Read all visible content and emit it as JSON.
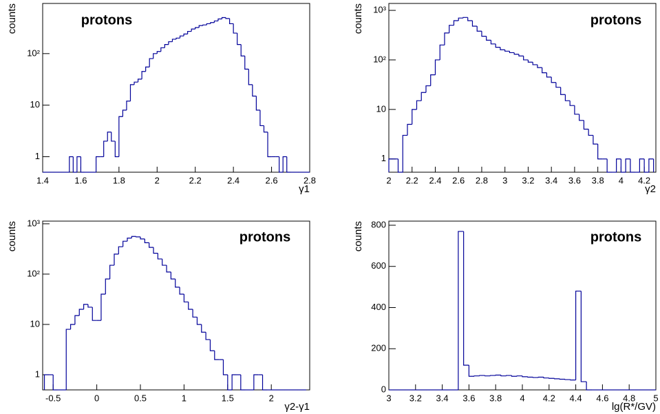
{
  "chart_data": [
    {
      "type": "histogram",
      "title": "protons",
      "x_label": "γ1",
      "y_label": "counts",
      "color": "#000099",
      "log_y": true,
      "xlim": [
        1.4,
        2.8
      ],
      "ylim": [
        0.5,
        940
      ],
      "xticks": [
        1.4,
        1.6,
        1.8,
        2,
        2.2,
        2.4,
        2.6,
        2.8
      ],
      "yticks": [
        1,
        10,
        {
          "value": 100,
          "label": "10²"
        }
      ],
      "bins": [
        1.4,
        1.42,
        1.44,
        1.46,
        1.48,
        1.5,
        1.52,
        1.54,
        1.56,
        1.58,
        1.6,
        1.62,
        1.64,
        1.66,
        1.68,
        1.7,
        1.72,
        1.74,
        1.76,
        1.78,
        1.8,
        1.82,
        1.84,
        1.86,
        1.88,
        1.9,
        1.92,
        1.94,
        1.96,
        1.98,
        2,
        2.02,
        2.04,
        2.06,
        2.08,
        2.1,
        2.12,
        2.14,
        2.16,
        2.18,
        2.2,
        2.22,
        2.24,
        2.26,
        2.28,
        2.3,
        2.32,
        2.34,
        2.36,
        2.38,
        2.4,
        2.42,
        2.44,
        2.46,
        2.48,
        2.5,
        2.52,
        2.54,
        2.56,
        2.58,
        2.6,
        2.62,
        2.64,
        2.66,
        2.68,
        2.7,
        2.72,
        2.74,
        2.76,
        2.78,
        2.8
      ],
      "values": [
        0,
        0,
        0,
        0,
        0,
        0,
        0,
        1,
        0,
        1,
        0,
        0,
        0,
        0,
        1,
        1,
        2,
        3,
        2,
        1,
        6,
        8,
        12,
        25,
        28,
        32,
        45,
        55,
        80,
        100,
        110,
        130,
        150,
        170,
        190,
        200,
        220,
        240,
        270,
        300,
        320,
        350,
        360,
        380,
        400,
        430,
        470,
        500,
        480,
        380,
        250,
        150,
        90,
        50,
        25,
        15,
        8,
        4,
        3,
        1,
        1,
        1,
        0,
        1,
        0,
        0,
        0,
        0,
        0,
        0
      ]
    },
    {
      "type": "histogram",
      "title": "protons",
      "x_label": "γ2",
      "y_label": "counts",
      "color": "#000099",
      "log_y": true,
      "xlim": [
        2,
        4.3
      ],
      "ylim": [
        0.54,
        1380
      ],
      "xticks": [
        2,
        2.2,
        2.4,
        2.6,
        2.8,
        3,
        3.2,
        3.4,
        3.6,
        3.8,
        4,
        4.2
      ],
      "yticks": [
        1,
        10,
        {
          "value": 100,
          "label": "10²"
        },
        {
          "value": 1000,
          "label": "10³"
        }
      ],
      "bins": [
        2,
        2.04,
        2.08,
        2.12,
        2.16,
        2.2,
        2.24,
        2.28,
        2.32,
        2.36,
        2.4,
        2.44,
        2.48,
        2.52,
        2.56,
        2.6,
        2.64,
        2.68,
        2.72,
        2.76,
        2.8,
        2.84,
        2.88,
        2.92,
        2.96,
        3,
        3.04,
        3.08,
        3.12,
        3.16,
        3.2,
        3.24,
        3.28,
        3.32,
        3.36,
        3.4,
        3.44,
        3.48,
        3.52,
        3.56,
        3.6,
        3.64,
        3.68,
        3.72,
        3.76,
        3.8,
        3.84,
        3.88,
        3.92,
        3.96,
        4,
        4.04,
        4.08,
        4.12,
        4.16,
        4.2,
        4.24,
        4.28
      ],
      "values": [
        1,
        1,
        0,
        3,
        5,
        10,
        15,
        22,
        30,
        50,
        100,
        200,
        350,
        500,
        620,
        700,
        720,
        620,
        480,
        380,
        300,
        250,
        210,
        180,
        160,
        150,
        140,
        130,
        120,
        100,
        90,
        80,
        70,
        55,
        45,
        35,
        28,
        20,
        15,
        12,
        8,
        6,
        4,
        3,
        2,
        1,
        1,
        0,
        0,
        1,
        0,
        1,
        0,
        0,
        1,
        0,
        1
      ]
    },
    {
      "type": "histogram",
      "title": "protons",
      "x_label": "γ2-γ1",
      "y_label": "counts",
      "color": "#000099",
      "log_y": true,
      "xlim": [
        -0.62,
        2.44
      ],
      "ylim": [
        0.5,
        1130
      ],
      "xticks": [
        -0.5,
        0,
        0.5,
        1,
        1.5,
        2
      ],
      "yticks": [
        1,
        10,
        {
          "value": 100,
          "label": "10²"
        },
        {
          "value": 1000,
          "label": "10³"
        }
      ],
      "bins": [
        -0.6,
        -0.55,
        -0.5,
        -0.45,
        -0.4,
        -0.35,
        -0.3,
        -0.25,
        -0.2,
        -0.15,
        -0.1,
        -0.05,
        0,
        0.05,
        0.1,
        0.15,
        0.2,
        0.25,
        0.3,
        0.35,
        0.4,
        0.45,
        0.5,
        0.55,
        0.6,
        0.65,
        0.7,
        0.75,
        0.8,
        0.85,
        0.9,
        0.95,
        1,
        1.05,
        1.1,
        1.15,
        1.2,
        1.25,
        1.3,
        1.35,
        1.4,
        1.45,
        1.5,
        1.55,
        1.6,
        1.65,
        1.7,
        1.75,
        1.8,
        1.85,
        1.9,
        1.95,
        2,
        2.05,
        2.1,
        2.15,
        2.2,
        2.25,
        2.3,
        2.35,
        2.4
      ],
      "values": [
        1,
        1,
        0,
        0,
        0,
        8,
        10,
        15,
        20,
        25,
        22,
        12,
        12,
        40,
        80,
        150,
        250,
        350,
        450,
        520,
        560,
        550,
        500,
        420,
        340,
        260,
        200,
        150,
        110,
        80,
        55,
        40,
        28,
        20,
        14,
        10,
        7,
        5,
        3,
        2,
        2,
        1,
        0,
        1,
        1,
        0,
        0,
        0,
        1,
        1,
        0,
        0,
        0,
        0,
        0,
        0,
        0,
        0,
        0,
        0
      ]
    },
    {
      "type": "histogram",
      "title": "protons",
      "x_label": "lg(R*/GV)",
      "y_label": "counts",
      "color": "#000099",
      "log_y": false,
      "xlim": [
        3,
        5
      ],
      "ylim": [
        0,
        820
      ],
      "xticks": [
        3,
        3.2,
        3.4,
        3.6,
        3.8,
        4,
        4.2,
        4.4,
        4.6,
        4.8,
        5
      ],
      "yticks": [
        0,
        200,
        400,
        600,
        800
      ],
      "bins": [
        3,
        3.04,
        3.08,
        3.12,
        3.16,
        3.2,
        3.24,
        3.28,
        3.32,
        3.36,
        3.4,
        3.44,
        3.48,
        3.52,
        3.56,
        3.6,
        3.64,
        3.68,
        3.72,
        3.76,
        3.8,
        3.84,
        3.88,
        3.92,
        3.96,
        4,
        4.04,
        4.08,
        4.12,
        4.16,
        4.2,
        4.24,
        4.28,
        4.32,
        4.36,
        4.4,
        4.44,
        4.48,
        4.52,
        4.56,
        4.6,
        4.64,
        4.68,
        4.72,
        4.76,
        4.8,
        4.84,
        4.88,
        4.92,
        4.96,
        5
      ],
      "values": [
        0,
        0,
        0,
        0,
        0,
        0,
        0,
        0,
        0,
        0,
        0,
        0,
        0,
        770,
        120,
        66,
        68,
        70,
        68,
        70,
        72,
        68,
        70,
        66,
        68,
        64,
        62,
        60,
        62,
        58,
        56,
        54,
        52,
        50,
        48,
        480,
        40,
        0,
        0,
        0,
        0,
        0,
        0,
        0,
        0,
        0,
        0,
        0,
        0,
        0
      ]
    }
  ]
}
